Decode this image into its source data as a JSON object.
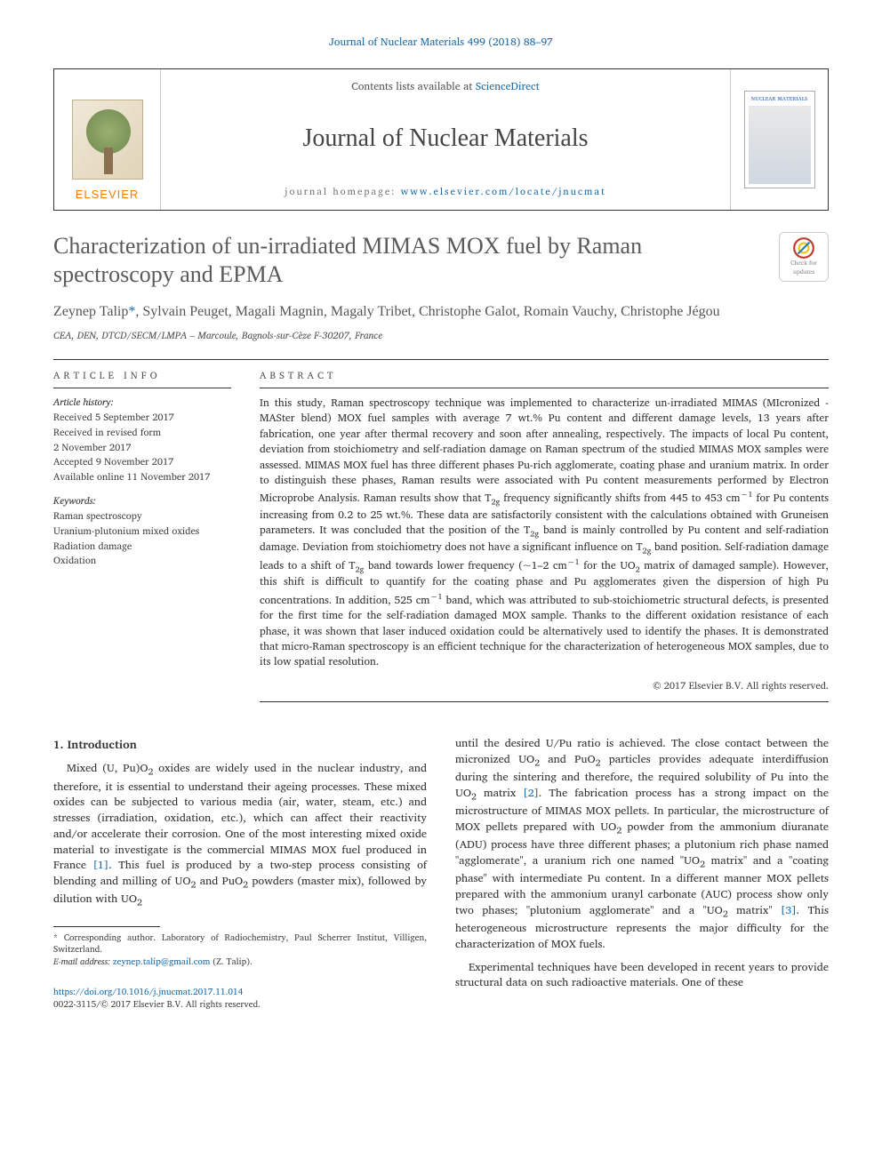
{
  "header_citation": "Journal of Nuclear Materials 499 (2018) 88–97",
  "banner": {
    "contents_prefix": "Contents lists available at ",
    "contents_link": "ScienceDirect",
    "journal_name": "Journal of Nuclear Materials",
    "homepage_prefix": "journal homepage: ",
    "homepage_link": "www.elsevier.com/locate/jnucmat",
    "publisher_logo_text": "ELSEVIER",
    "cover_label": "NUCLEAR MATERIALS"
  },
  "crossmark": {
    "line1": "Check for",
    "line2": "updates"
  },
  "title": "Characterization of un-irradiated MIMAS MOX fuel by Raman spectroscopy and EPMA",
  "authors_html": "Zeynep Talip<a class=\"corr\" href=\"#\">*</a>, Sylvain Peuget, Magali Magnin, Magaly Tribet, Christophe Galot, Romain Vauchy, Christophe Jégou",
  "affiliation": "CEA, DEN, DTCD/SECM/LMPA – Marcoule, Bagnols-sur-Cèze F-30207, France",
  "article_info": {
    "label": "ARTICLE INFO",
    "history_title": "Article history:",
    "history": [
      "Received 5 September 2017",
      "Received in revised form",
      "2 November 2017",
      "Accepted 9 November 2017",
      "Available online 11 November 2017"
    ],
    "keywords_title": "Keywords:",
    "keywords": [
      "Raman spectroscopy",
      "Uranium-plutonium mixed oxides",
      "Radiation damage",
      "Oxidation"
    ]
  },
  "abstract": {
    "label": "ABSTRACT",
    "text_html": "In this study, Raman spectroscopy technique was implemented to characterize un-irradiated MIMAS (MIcronized - MASter blend) MOX fuel samples with average 7 wt.% Pu content and different damage levels, 13 years after fabrication, one year after thermal recovery and soon after annealing, respectively. The impacts of local Pu content, deviation from stoichiometry and self-radiation damage on Raman spectrum of the studied MIMAS MOX samples were assessed. MIMAS MOX fuel has three different phases Pu-rich agglomerate, coating phase and uranium matrix. In order to distinguish these phases, Raman results were associated with Pu content measurements performed by Electron Microprobe Analysis. Raman results show that T<sub>2g</sub> frequency significantly shifts from 445 to 453 cm<sup>−1</sup> for Pu contents increasing from 0.2 to 25 wt.%. These data are satisfactorily consistent with the calculations obtained with Gruneisen parameters. It was concluded that the position of the T<sub>2g</sub> band is mainly controlled by Pu content and self-radiation damage. Deviation from stoichiometry does not have a significant influence on T<sub>2g</sub> band position. Self-radiation damage leads to a shift of T<sub>2g</sub> band towards lower frequency (~1–2 cm<sup>−1</sup> for the UO<sub>2</sub> matrix of damaged sample). However, this shift is difficult to quantify for the coating phase and Pu agglomerates given the dispersion of high Pu concentrations. In addition, 525 cm<sup>−1</sup> band, which was attributed to sub-stoichiometric structural defects, is presented for the first time for the self-radiation damaged MOX sample. Thanks to the different oxidation resistance of each phase, it was shown that laser induced oxidation could be alternatively used to identify the phases. It is demonstrated that micro-Raman spectroscopy is an efficient technique for the characterization of heterogeneous MOX samples, due to its low spatial resolution.",
    "copyright": "© 2017 Elsevier B.V. All rights reserved."
  },
  "introduction": {
    "heading": "1. Introduction",
    "col1_html": "Mixed (U, Pu)O<sub>2</sub> oxides are widely used in the nuclear industry, and therefore, it is essential to understand their ageing processes. These mixed oxides can be subjected to various media (air, water, steam, etc.) and stresses (irradiation, oxidation, etc.), which can affect their reactivity and/or accelerate their corrosion. One of the most interesting mixed oxide material to investigate is the commercial MIMAS MOX fuel produced in France <a class=\"ref-link\" href=\"#\">[1]</a>. This fuel is produced by a two-step process consisting of blending and milling of UO<sub>2</sub> and PuO<sub>2</sub> powders (master mix), followed by dilution with UO<sub>2</sub>",
    "col2_p1_html": "until the desired U/Pu ratio is achieved. The close contact between the micronized UO<sub>2</sub> and PuO<sub>2</sub> particles provides adequate interdiffusion during the sintering and therefore, the required solubility of Pu into the UO<sub>2</sub> matrix <a class=\"ref-link\" href=\"#\">[2]</a>. The fabrication process has a strong impact on the microstructure of MIMAS MOX pellets. In particular, the microstructure of MOX pellets prepared with UO<sub>2</sub> powder from the ammonium diuranate (ADU) process have three different phases; a plutonium rich phase named \"agglomerate\", a uranium rich one named \"UO<sub>2</sub> matrix\" and a \"coating phase\" with intermediate Pu content. In a different manner MOX pellets prepared with the ammonium uranyl carbonate (AUC) process show only two phases; \"plutonium agglomerate\" and a \"UO<sub>2</sub> matrix\" <a class=\"ref-link\" href=\"#\">[3]</a>. This heterogeneous microstructure represents the major difficulty for the characterization of MOX fuels.",
    "col2_p2_html": "Experimental techniques have been developed in recent years to provide structural data on such radioactive materials. One of these"
  },
  "footnote": {
    "corr_text": "* Corresponding author. Laboratory of Radiochemistry, Paul Scherrer Institut, Villigen, Switzerland.",
    "email_label": "E-mail address: ",
    "email": "zeynep.talip@gmail.com",
    "email_who": " (Z. Talip)."
  },
  "doi": {
    "link": "https://doi.org/10.1016/j.jnucmat.2017.11.014",
    "issn_line": "0022-3115/© 2017 Elsevier B.V. All rights reserved."
  },
  "colors": {
    "link": "#1a6ba8",
    "elsevier_orange": "#ff7a00",
    "text": "#333333",
    "heading_gray": "#5a5a5a"
  },
  "typography": {
    "body_pt": 12.5,
    "title_pt": 26,
    "journal_pt": 28,
    "authors_pt": 16,
    "footnote_pt": 10
  }
}
